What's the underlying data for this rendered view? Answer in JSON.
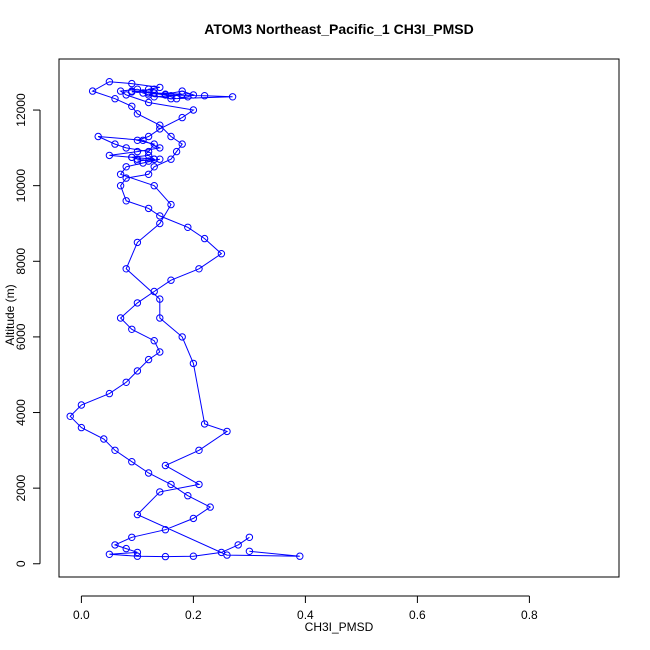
{
  "chart_data": {
    "type": "line",
    "title": "ATOM3 Northeast_Pacific_1 CH3I_PMSD",
    "xlabel": "CH3I_PMSD",
    "ylabel": "Altitude (m)",
    "xlim": [
      -0.04,
      0.96
    ],
    "ylim": [
      -350,
      13350
    ],
    "xticks": [
      0.0,
      0.2,
      0.4,
      0.6,
      0.8
    ],
    "xtick_labels": [
      "0.0",
      "0.2",
      "0.4",
      "0.6",
      "0.8"
    ],
    "yticks": [
      0,
      2000,
      4000,
      6000,
      8000,
      10000,
      12000
    ],
    "ytick_labels": [
      "0",
      "2000",
      "4000",
      "6000",
      "8000",
      "10000",
      "12000"
    ],
    "grid": false,
    "legend": "none",
    "color": "#0000ff",
    "marker": "open-circle",
    "series": [
      {
        "x": [
          0.3,
          0.39,
          0.26,
          0.1,
          0.14,
          0.21,
          0.15,
          0.21,
          0.26,
          0.22,
          0.2,
          0.18,
          0.14,
          0.14,
          0.08,
          0.1,
          0.14,
          0.16,
          0.13,
          0.07,
          0.08,
          0.11,
          0.14,
          0.12,
          0.1,
          0.09,
          0.12,
          0.13,
          0.1,
          0.13,
          0.09,
          0.05,
          0.1,
          0.14,
          0.11,
          0.03,
          0.06,
          0.08,
          0.12,
          0.13,
          0.1,
          0.12,
          0.14,
          0.18,
          0.2,
          0.12,
          0.08,
          0.07,
          0.1,
          0.12,
          0.15,
          0.22,
          0.27,
          0.16,
          0.12,
          0.13,
          0.15,
          0.18,
          0.2,
          0.19,
          0.17,
          0.15,
          0.13,
          0.09,
          0.13,
          0.09,
          0.18,
          0.16,
          0.13,
          0.11,
          0.12,
          0.14,
          0.09,
          0.05,
          0.02,
          0.06,
          0.09,
          0.1,
          0.14,
          0.16,
          0.18,
          0.17,
          0.16,
          0.13,
          0.12,
          0.08,
          0.07,
          0.08,
          0.12,
          0.14,
          0.19,
          0.22,
          0.25,
          0.21,
          0.16,
          0.13,
          0.1,
          0.07,
          0.09,
          0.13,
          0.14,
          0.12,
          0.1,
          0.08,
          0.05,
          0.0,
          -0.02,
          0.0,
          0.04,
          0.06,
          0.09,
          0.12,
          0.16,
          0.19,
          0.23,
          0.2,
          0.15,
          0.09,
          0.06,
          0.08,
          0.1,
          0.05,
          0.1,
          0.15,
          0.2,
          0.25,
          0.28,
          0.3
        ],
        "y": [
          330,
          200,
          230,
          1300,
          1900,
          2100,
          2600,
          3000,
          3500,
          3700,
          5300,
          6000,
          6500,
          7000,
          7800,
          8500,
          9000,
          9500,
          10000,
          10300,
          10500,
          10600,
          10700,
          10650,
          10700,
          10750,
          10800,
          10700,
          10650,
          10700,
          10750,
          10800,
          10900,
          11000,
          11200,
          11300,
          11100,
          11000,
          10900,
          11100,
          11200,
          11300,
          11500,
          11800,
          12000,
          12200,
          12400,
          12500,
          12550,
          12450,
          12400,
          12380,
          12350,
          12300,
          12400,
          12450,
          12420,
          12500,
          12400,
          12350,
          12300,
          12400,
          12450,
          12500,
          12550,
          12480,
          12420,
          12380,
          12350,
          12450,
          12550,
          12600,
          12700,
          12750,
          12500,
          12300,
          12100,
          11900,
          11600,
          11300,
          11100,
          10900,
          10700,
          10500,
          10300,
          10200,
          10000,
          9600,
          9400,
          9200,
          8900,
          8600,
          8200,
          7800,
          7500,
          7200,
          6900,
          6500,
          6200,
          5900,
          5600,
          5400,
          5100,
          4800,
          4500,
          4200,
          3900,
          3600,
          3300,
          3000,
          2700,
          2400,
          2100,
          1800,
          1500,
          1200,
          900,
          700,
          500,
          400,
          300,
          250,
          200,
          190,
          200,
          300,
          500,
          700
        ]
      }
    ]
  }
}
